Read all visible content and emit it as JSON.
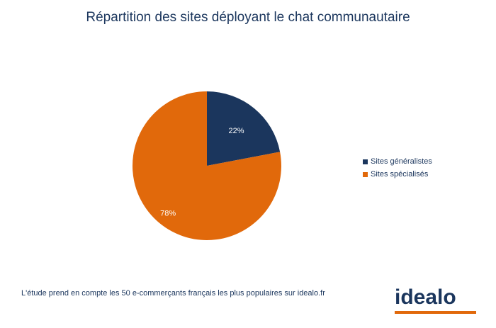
{
  "chart_data": {
    "type": "pie",
    "title": "Répartition des sites déployant le chat communautaire",
    "slices": [
      {
        "name": "Sites généralistes",
        "value": 22,
        "label": "22%",
        "color": "#1b365d"
      },
      {
        "name": "Sites spécialisés",
        "value": 78,
        "label": "78%",
        "color": "#e1690b"
      }
    ],
    "legend_position": "right"
  },
  "footnote": "L'étude prend en compte les 50 e-commerçants français les plus populaires sur idealo.fr",
  "logo": {
    "text": "idealo",
    "accent_color": "#e1690b",
    "text_color": "#1b365d"
  }
}
